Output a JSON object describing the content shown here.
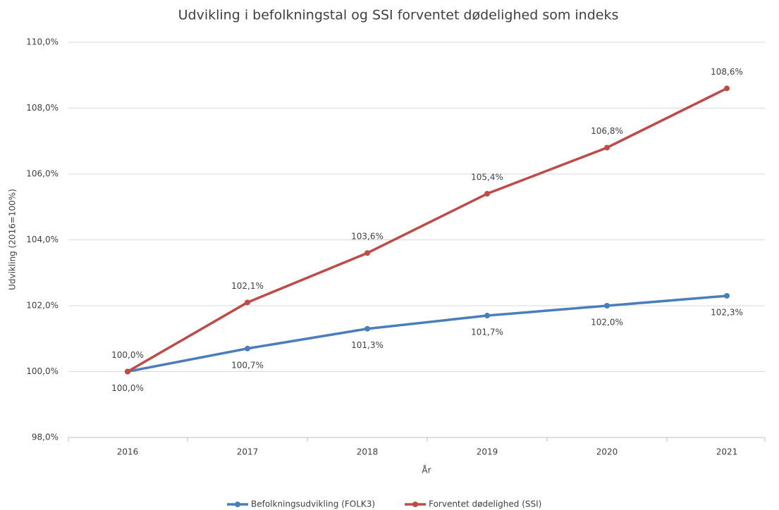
{
  "chart_data": {
    "type": "line",
    "title": "Udvikling i befolkningstal og SSI forventet dødelighed som indeks",
    "x_label": "År",
    "y_label": "Udvikling (2016=100%)",
    "categories": [
      "2016",
      "2017",
      "2018",
      "2019",
      "2020",
      "2021"
    ],
    "series": [
      {
        "name": "Befolkningsudvikling (FOLK3)",
        "color": "#4a7ebb",
        "values": [
          100.0,
          100.7,
          101.3,
          101.7,
          102.0,
          102.3
        ],
        "value_labels": [
          "100,0%",
          "100,7%",
          "101,3%",
          "101,7%",
          "102,0%",
          "102,3%"
        ]
      },
      {
        "name": "Forventet dødelighed (SSI)",
        "color": "#be4b48",
        "values": [
          100.0,
          102.1,
          103.6,
          105.4,
          106.8,
          108.6
        ],
        "value_labels": [
          "100,0%",
          "102,1%",
          "103,6%",
          "105,4%",
          "106,8%",
          "108,6%"
        ]
      }
    ],
    "ylim": [
      98,
      110
    ],
    "yticks": [
      {
        "value": 98,
        "label": "98,0%"
      },
      {
        "value": 100,
        "label": "100,0%"
      },
      {
        "value": 102,
        "label": "102,0%"
      },
      {
        "value": 104,
        "label": "104,0%"
      },
      {
        "value": 106,
        "label": "106,0%"
      },
      {
        "value": 108,
        "label": "108,0%"
      },
      {
        "value": 110,
        "label": "110,0%"
      }
    ],
    "grid": true,
    "legend": "bottom"
  }
}
